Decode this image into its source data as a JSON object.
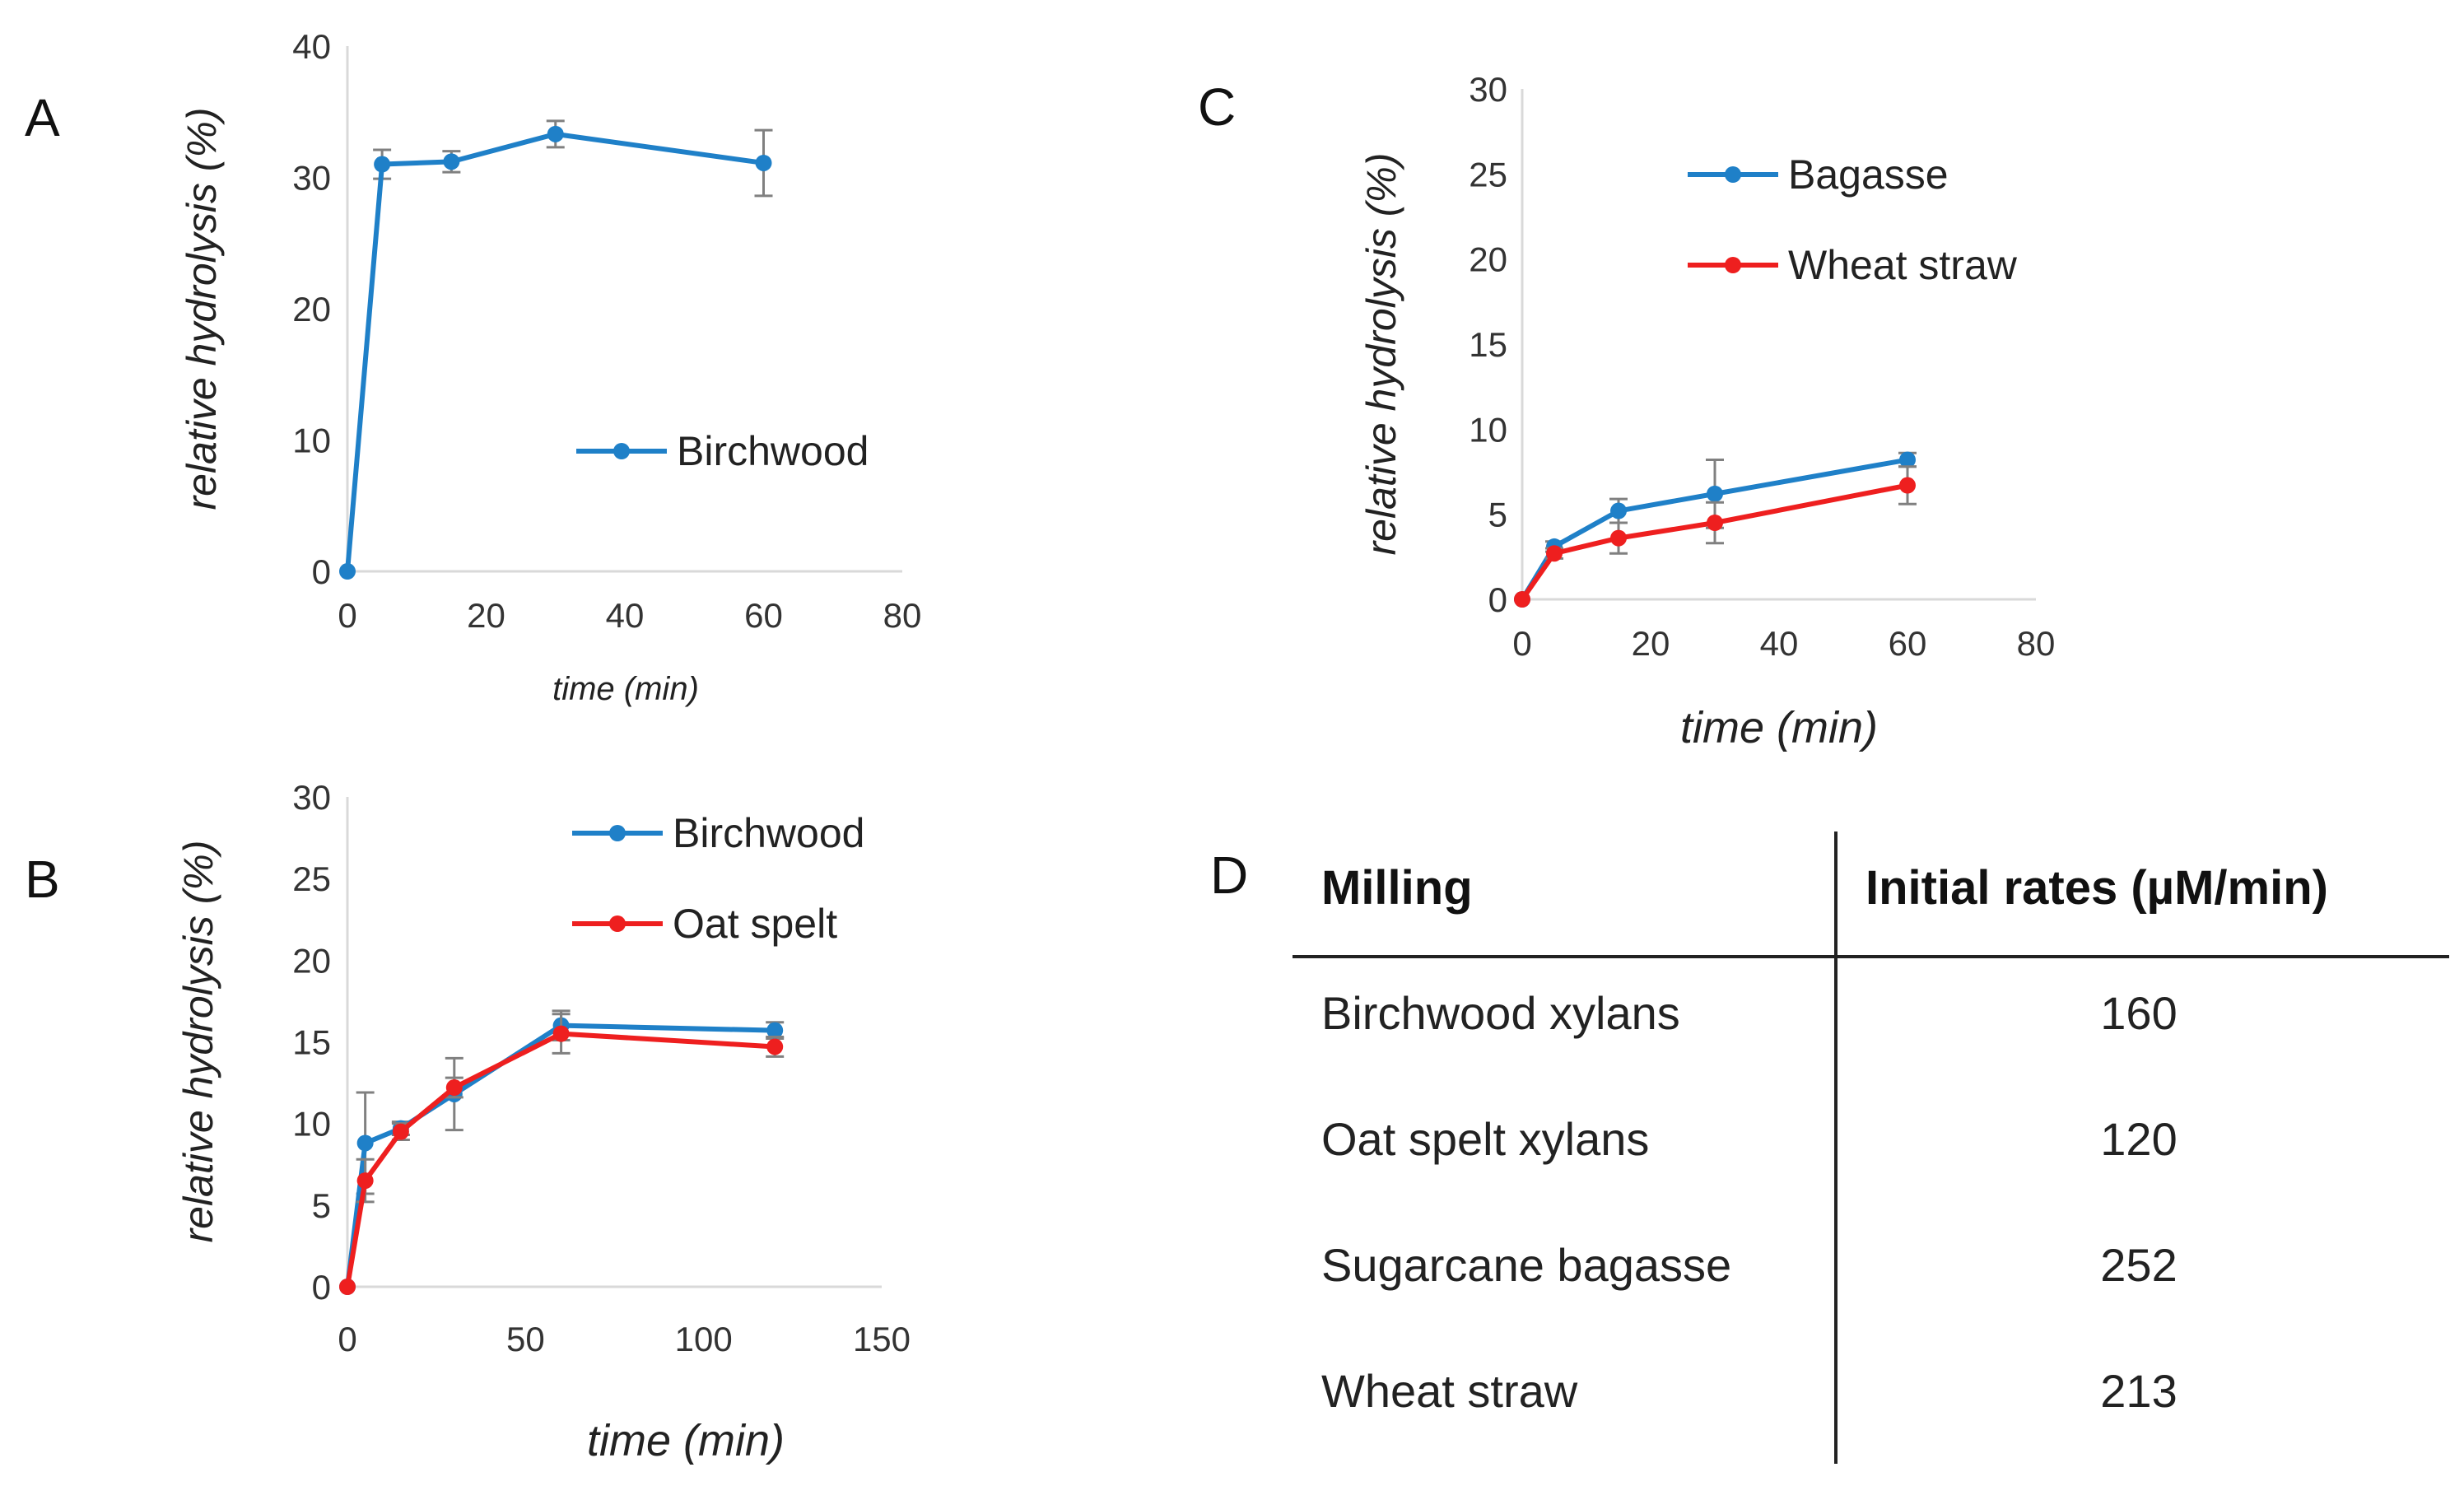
{
  "colors": {
    "blue": "#1f80c8",
    "red": "#ee1f1f",
    "errorbar": "#808080"
  },
  "chart_data": [
    {
      "panel": "A",
      "type": "line",
      "ylabel": "relative hydrolysis (%)",
      "xlabel": "time (min)",
      "xlim": [
        0,
        80
      ],
      "xticks": [
        0,
        20,
        40,
        60,
        80
      ],
      "ylim": [
        0,
        40
      ],
      "yticks": [
        0,
        10,
        20,
        30,
        40
      ],
      "legend_position": "center-right",
      "series": [
        {
          "name": "Birchwood",
          "color": "blue",
          "x": [
            0,
            5,
            15,
            30,
            60
          ],
          "y": [
            0,
            31.0,
            31.2,
            33.3,
            31.1
          ],
          "err": [
            0,
            1.1,
            0.8,
            1.0,
            2.5
          ]
        }
      ]
    },
    {
      "panel": "B",
      "type": "line",
      "ylabel": "relative hydrolysis (%)",
      "xlabel": "time (min)",
      "xlim": [
        0,
        150
      ],
      "xticks": [
        0,
        50,
        100,
        150
      ],
      "ylim": [
        0,
        30
      ],
      "yticks": [
        0,
        5,
        10,
        15,
        20,
        25,
        30
      ],
      "legend_position": "top-right",
      "series": [
        {
          "name": "Birchwood",
          "color": "blue",
          "x": [
            0,
            5,
            15,
            30,
            60,
            120
          ],
          "y": [
            0,
            8.8,
            9.7,
            11.8,
            16.0,
            15.7
          ],
          "err": [
            0,
            3.1,
            0.4,
            2.2,
            0.9,
            0.5
          ]
        },
        {
          "name": "Oat spelt",
          "color": "red",
          "x": [
            0,
            5,
            15,
            30,
            60,
            120
          ],
          "y": [
            0,
            6.5,
            9.5,
            12.2,
            15.5,
            14.7
          ],
          "err": [
            0,
            1.3,
            0.5,
            0.6,
            1.2,
            0.6
          ]
        }
      ]
    },
    {
      "panel": "C",
      "type": "line",
      "ylabel": "relative hydrolysis (%)",
      "xlabel": "time (min)",
      "xlim": [
        0,
        80
      ],
      "xticks": [
        0,
        20,
        40,
        60,
        80
      ],
      "ylim": [
        0,
        30
      ],
      "yticks": [
        0,
        5,
        10,
        15,
        20,
        25,
        30
      ],
      "legend_position": "top-right",
      "series": [
        {
          "name": "Bagasse",
          "color": "blue",
          "x": [
            0,
            5,
            15,
            30,
            60
          ],
          "y": [
            0,
            3.1,
            5.2,
            6.2,
            8.2
          ],
          "err": [
            0,
            0.3,
            0.7,
            2.0,
            0.4
          ]
        },
        {
          "name": "Wheat straw",
          "color": "red",
          "x": [
            0,
            5,
            15,
            30,
            60
          ],
          "y": [
            0,
            2.7,
            3.6,
            4.5,
            6.7
          ],
          "err": [
            0,
            0.3,
            0.9,
            1.2,
            1.1
          ]
        }
      ]
    },
    {
      "panel": "D",
      "type": "table",
      "columns": [
        "Milling",
        "Initial rates (µM/min)"
      ],
      "rows": [
        [
          "Birchwood xylans",
          "160"
        ],
        [
          "Oat spelt xylans",
          "120"
        ],
        [
          "Sugarcane bagasse",
          "252"
        ],
        [
          "Wheat straw",
          "213"
        ]
      ]
    }
  ]
}
